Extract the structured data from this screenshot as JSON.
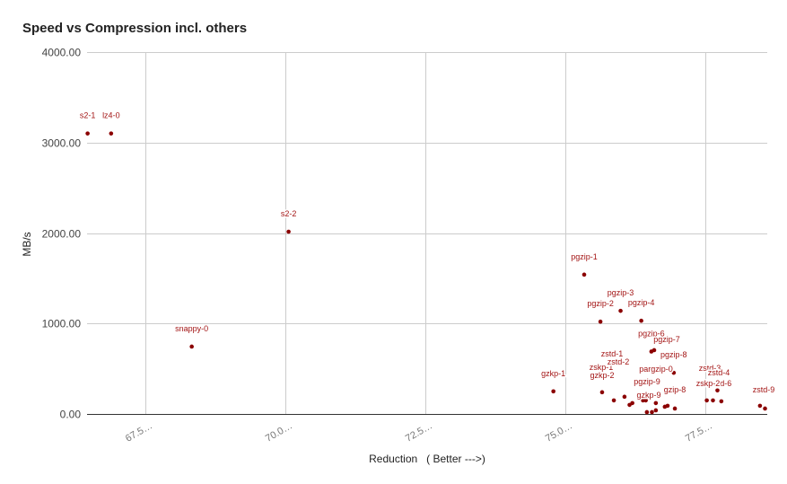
{
  "chart_data": {
    "type": "scatter",
    "title": "Speed vs Compression incl. others",
    "xlabel": "Reduction   ( Better --->)",
    "ylabel": "MB/s",
    "xlim": [
      66.46,
      78.61
    ],
    "ylim": [
      0,
      4000
    ],
    "x_ticks": [
      67.5,
      70.0,
      72.5,
      75.0,
      77.5
    ],
    "x_tick_labels": [
      "67.5…",
      "70.0…",
      "72.5…",
      "75.0…",
      "77.5…"
    ],
    "y_ticks": [
      0,
      1000,
      2000,
      3000,
      4000
    ],
    "y_tick_labels": [
      "0.00",
      "1000.00",
      "2000.00",
      "3000.00",
      "4000.00"
    ],
    "grid": true,
    "legend": "none",
    "point_color": "#8b0000",
    "label_color": "#a31515",
    "points": [
      {
        "label": "s2-1",
        "x": 66.47,
        "y": 3100
      },
      {
        "label": "lz4-0",
        "x": 66.89,
        "y": 3100
      },
      {
        "label": "snappy-0",
        "x": 68.33,
        "y": 745
      },
      {
        "label": "s2-2",
        "x": 70.06,
        "y": 2015
      },
      {
        "label": "gzkp-1",
        "x": 74.79,
        "y": 250
      },
      {
        "label": "pgzip-1",
        "x": 75.34,
        "y": 1540
      },
      {
        "label": "pgzip-2",
        "x": 75.63,
        "y": 1020
      },
      {
        "label": "pgzip-3",
        "x": 75.99,
        "y": 1140
      },
      {
        "label": "pgzip-4",
        "x": 76.36,
        "y": 1030
      },
      {
        "label": "pgzip-6",
        "x": 76.54,
        "y": 690
      },
      {
        "label": "pgzip-7",
        "x": 76.59,
        "y": 705
      },
      {
        "label": "pgzip-8",
        "x": 76.94,
        "y": 455
      },
      {
        "label": "gzkp-2",
        "x": 75.66,
        "y": 240
      },
      {
        "label": "zskp-1",
        "x": 75.87,
        "y": 150
      },
      {
        "label": "zstd-1",
        "x": 76.06,
        "y": 190
      },
      {
        "label": "zstd-2",
        "x": 76.15,
        "y": 100
      },
      {
        "label": "",
        "x": 76.2,
        "y": 120
      },
      {
        "label": "pargzip-0",
        "x": 76.39,
        "y": 150
      },
      {
        "label": "pgzip-9",
        "x": 76.44,
        "y": 150
      },
      {
        "label": "gzkp-9",
        "x": 76.46,
        "y": 20
      },
      {
        "label": "",
        "x": 76.55,
        "y": 20
      },
      {
        "label": "",
        "x": 76.62,
        "y": 40
      },
      {
        "label": "",
        "x": 76.62,
        "y": 120
      },
      {
        "label": "",
        "x": 76.78,
        "y": 80
      },
      {
        "label": "",
        "x": 76.83,
        "y": 90
      },
      {
        "label": "gzip-8",
        "x": 76.96,
        "y": 60
      },
      {
        "label": "zstd-3",
        "x": 77.53,
        "y": 150
      },
      {
        "label": "zstd-6",
        "x": 77.79,
        "y": 140
      },
      {
        "label": "zskp-2",
        "x": 77.64,
        "y": 150
      },
      {
        "label": "zstd-4",
        "x": 77.72,
        "y": 260
      },
      {
        "label": "",
        "x": 78.48,
        "y": 90
      },
      {
        "label": "zstd-9",
        "x": 78.57,
        "y": 60
      }
    ]
  }
}
